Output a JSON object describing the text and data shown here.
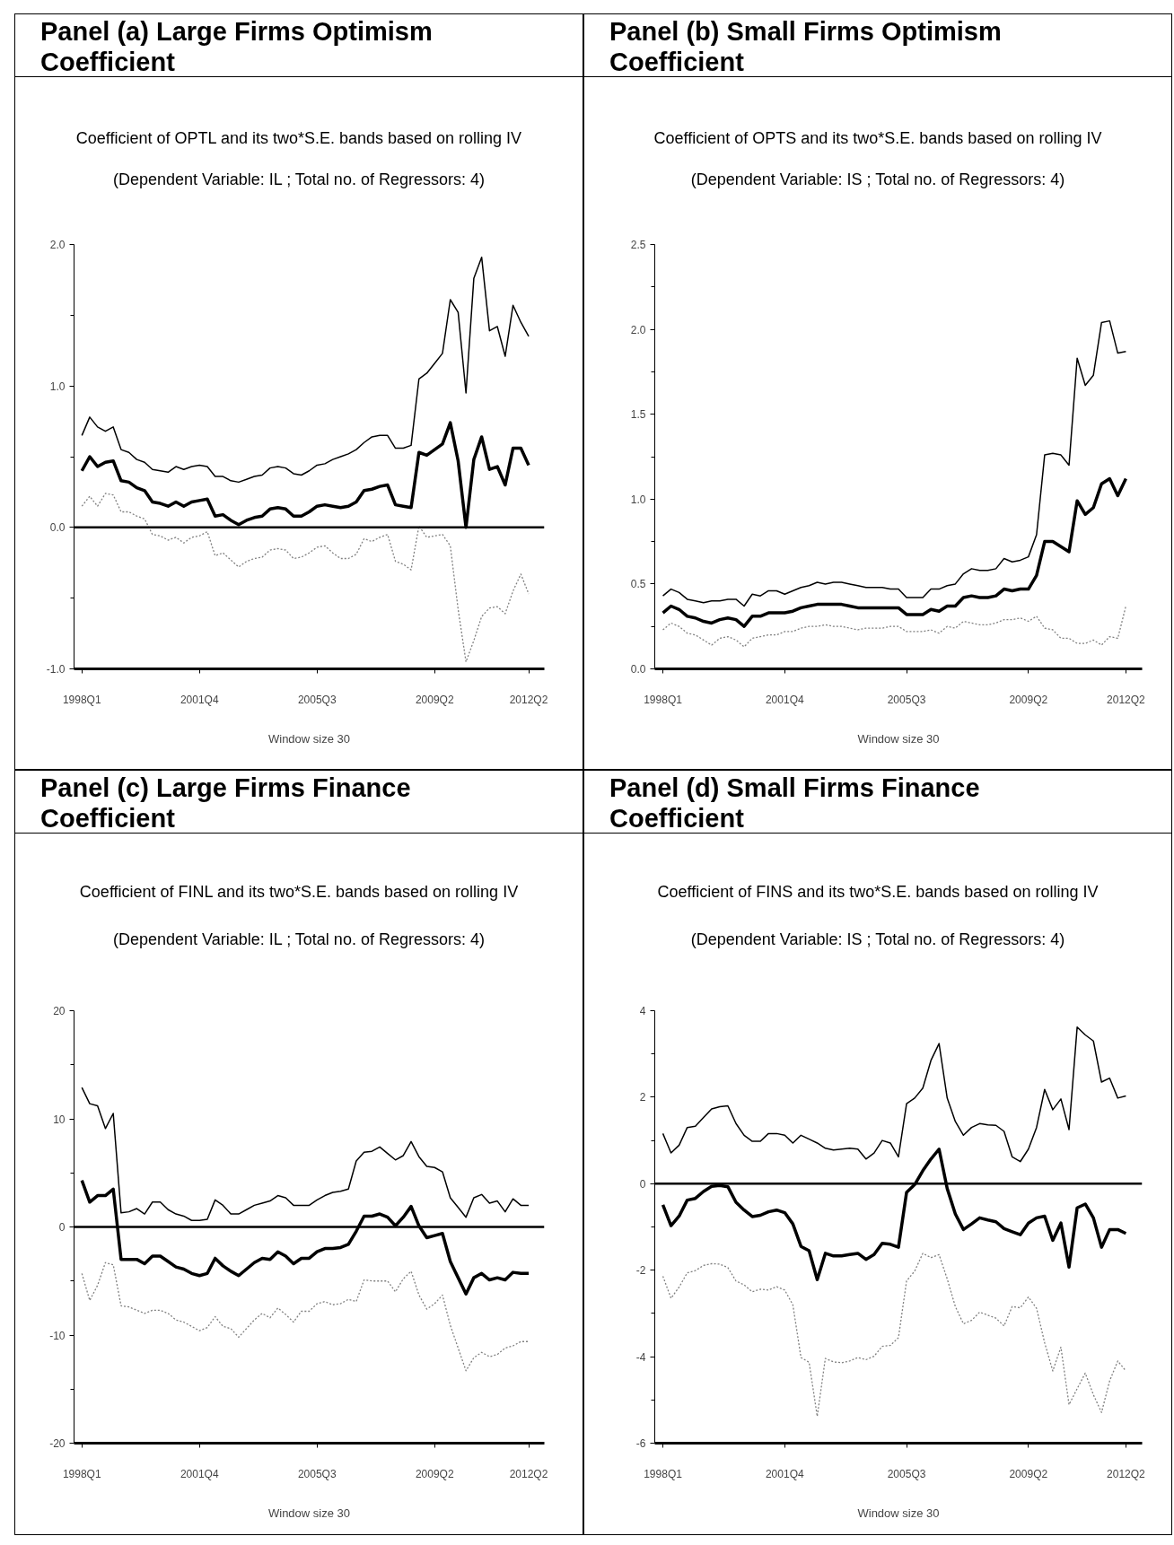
{
  "chart_data": [
    {
      "type": "line",
      "title": "Panel (a) Large Firms Optimism Coefficient",
      "subtitle": "Coefficient of OPTL and its two*S.E. bands based on rolling IV",
      "annotations": [
        "(Dependent Variable: IL ; Total no. of Regressors: 4)"
      ],
      "xlabel": "Window size 30",
      "categories": [
        "1998Q1",
        null,
        null,
        null,
        null,
        null,
        null,
        null,
        null,
        null,
        null,
        null,
        null,
        null,
        null,
        "2001Q4",
        null,
        null,
        null,
        null,
        null,
        null,
        null,
        null,
        null,
        null,
        null,
        null,
        null,
        null,
        "2005Q3",
        null,
        null,
        null,
        null,
        null,
        null,
        null,
        null,
        null,
        null,
        null,
        null,
        null,
        null,
        "2009Q2",
        null,
        null,
        null,
        null,
        null,
        null,
        null,
        null,
        null,
        null,
        null,
        "2012Q2"
      ],
      "ylim": [
        -1,
        2
      ],
      "yticks": [
        {
          "value": 2,
          "label": "2.0"
        },
        {
          "value": 1.5,
          "label": null
        },
        {
          "value": 1,
          "label": "1.0"
        },
        {
          "value": 0.5,
          "label": null
        },
        {
          "value": 0,
          "label": "0.0"
        },
        {
          "value": -0.5,
          "label": null
        },
        {
          "value": -1,
          "label": "-1.0"
        }
      ],
      "ref_lines": [
        {
          "axis": "y",
          "value": 0,
          "color": "#000000"
        }
      ],
      "line_style": "solid",
      "series": [
        {
          "color": "#000000",
          "values": [
            0.4,
            0.5,
            0.43,
            0.46,
            0.47,
            0.33,
            0.32,
            0.28,
            0.26,
            0.18,
            0.17,
            0.15,
            0.18,
            0.15,
            0.18,
            0.19,
            0.2,
            0.08,
            0.09,
            0.05,
            0.02,
            0.05,
            0.07,
            0.08,
            0.13,
            0.14,
            0.13,
            0.08,
            0.08,
            0.11,
            0.15,
            0.16,
            0.15,
            0.14,
            0.15,
            0.18,
            0.26,
            0.27,
            0.29,
            0.3,
            0.16,
            0.15,
            0.14,
            0.53,
            0.51,
            0.55,
            0.59,
            0.74,
            0.47,
            0.0,
            0.48,
            0.64,
            0.41,
            0.43,
            0.3,
            0.56,
            0.56,
            0.44
          ]
        },
        {
          "color": "#000000",
          "values": [
            0.65,
            0.78,
            0.71,
            0.68,
            0.71,
            0.55,
            0.53,
            0.48,
            0.46,
            0.41,
            0.4,
            0.39,
            0.43,
            0.41,
            0.43,
            0.44,
            0.43,
            0.36,
            0.36,
            0.33,
            0.32,
            0.34,
            0.36,
            0.37,
            0.42,
            0.43,
            0.42,
            0.38,
            0.37,
            0.4,
            0.44,
            0.45,
            0.48,
            0.5,
            0.52,
            0.55,
            0.6,
            0.64,
            0.65,
            0.65,
            0.56,
            0.56,
            0.58,
            1.05,
            1.09,
            1.16,
            1.23,
            1.61,
            1.52,
            0.95,
            1.76,
            1.91,
            1.39,
            1.42,
            1.21,
            1.57,
            1.45,
            1.35
          ]
        },
        {
          "color": "#808080",
          "line_style": "dotted",
          "values": [
            0.15,
            0.22,
            0.15,
            0.24,
            0.23,
            0.11,
            0.11,
            0.08,
            0.06,
            -0.05,
            -0.06,
            -0.09,
            -0.07,
            -0.11,
            -0.07,
            -0.06,
            -0.03,
            -0.2,
            -0.18,
            -0.23,
            -0.28,
            -0.24,
            -0.22,
            -0.21,
            -0.16,
            -0.15,
            -0.16,
            -0.22,
            -0.21,
            -0.18,
            -0.14,
            -0.13,
            -0.18,
            -0.22,
            -0.22,
            -0.19,
            -0.08,
            -0.1,
            -0.07,
            -0.05,
            -0.24,
            -0.26,
            -0.3,
            0.01,
            -0.07,
            -0.06,
            -0.05,
            -0.13,
            -0.58,
            -0.95,
            -0.8,
            -0.63,
            -0.57,
            -0.56,
            -0.61,
            -0.45,
            -0.33,
            -0.47
          ]
        }
      ]
    },
    {
      "type": "line",
      "title": "Panel (b) Small Firms Optimism Coefficient",
      "subtitle": "Coefficient of OPTS and its two*S.E. bands based on rolling IV",
      "annotations": [
        "(Dependent Variable: IS ; Total no. of Regressors: 4)"
      ],
      "xlabel": "Window size 30",
      "categories": [
        "1998Q1",
        null,
        null,
        null,
        null,
        null,
        null,
        null,
        null,
        null,
        null,
        null,
        null,
        null,
        null,
        "2001Q4",
        null,
        null,
        null,
        null,
        null,
        null,
        null,
        null,
        null,
        null,
        null,
        null,
        null,
        null,
        "2005Q3",
        null,
        null,
        null,
        null,
        null,
        null,
        null,
        null,
        null,
        null,
        null,
        null,
        null,
        null,
        "2009Q2",
        null,
        null,
        null,
        null,
        null,
        null,
        null,
        null,
        null,
        null,
        null,
        "2012Q2"
      ],
      "ylim": [
        0,
        2.5
      ],
      "yticks": [
        {
          "value": 2.5,
          "label": "2.5"
        },
        {
          "value": 2.25,
          "label": null
        },
        {
          "value": 2,
          "label": "2.0"
        },
        {
          "value": 1.75,
          "label": null
        },
        {
          "value": 1.5,
          "label": "1.5"
        },
        {
          "value": 1.25,
          "label": null
        },
        {
          "value": 1,
          "label": "1.0"
        },
        {
          "value": 0.75,
          "label": null
        },
        {
          "value": 0.5,
          "label": "0.5"
        },
        {
          "value": 0.25,
          "label": null
        },
        {
          "value": 0,
          "label": "0.0"
        }
      ],
      "line_style": "solid",
      "series": [
        {
          "color": "#000000",
          "values": [
            0.33,
            0.37,
            0.35,
            0.31,
            0.3,
            0.28,
            0.27,
            0.29,
            0.3,
            0.29,
            0.25,
            0.31,
            0.31,
            0.33,
            0.33,
            0.33,
            0.34,
            0.36,
            0.37,
            0.38,
            0.38,
            0.38,
            0.38,
            0.37,
            0.36,
            0.36,
            0.36,
            0.36,
            0.36,
            0.36,
            0.32,
            0.32,
            0.32,
            0.35,
            0.34,
            0.37,
            0.37,
            0.42,
            0.43,
            0.42,
            0.42,
            0.43,
            0.47,
            0.46,
            0.47,
            0.47,
            0.55,
            0.75,
            0.75,
            0.72,
            0.69,
            0.99,
            0.91,
            0.95,
            1.09,
            1.12,
            1.02,
            1.12
          ]
        },
        {
          "color": "#000000",
          "values": [
            0.43,
            0.47,
            0.45,
            0.41,
            0.4,
            0.39,
            0.4,
            0.4,
            0.41,
            0.41,
            0.37,
            0.44,
            0.43,
            0.46,
            0.46,
            0.44,
            0.46,
            0.48,
            0.49,
            0.51,
            0.5,
            0.51,
            0.51,
            0.5,
            0.49,
            0.48,
            0.48,
            0.48,
            0.47,
            0.47,
            0.42,
            0.42,
            0.42,
            0.47,
            0.47,
            0.49,
            0.5,
            0.56,
            0.59,
            0.58,
            0.58,
            0.59,
            0.65,
            0.63,
            0.64,
            0.66,
            0.79,
            1.26,
            1.27,
            1.26,
            1.2,
            1.83,
            1.67,
            1.73,
            2.04,
            2.05,
            1.86,
            1.87
          ]
        },
        {
          "color": "#808080",
          "line_style": "dotted",
          "values": [
            0.23,
            0.27,
            0.25,
            0.21,
            0.2,
            0.17,
            0.14,
            0.18,
            0.19,
            0.17,
            0.13,
            0.18,
            0.19,
            0.2,
            0.2,
            0.22,
            0.22,
            0.24,
            0.25,
            0.25,
            0.26,
            0.25,
            0.25,
            0.24,
            0.23,
            0.24,
            0.24,
            0.24,
            0.25,
            0.25,
            0.22,
            0.22,
            0.22,
            0.23,
            0.21,
            0.25,
            0.24,
            0.28,
            0.27,
            0.26,
            0.26,
            0.27,
            0.29,
            0.29,
            0.3,
            0.28,
            0.31,
            0.24,
            0.23,
            0.18,
            0.18,
            0.15,
            0.15,
            0.17,
            0.14,
            0.19,
            0.18,
            0.37
          ]
        }
      ]
    },
    {
      "type": "line",
      "title": "Panel (c) Large Firms Finance Coefficient",
      "subtitle": "Coefficient of FINL and its two*S.E. bands based on rolling IV",
      "annotations": [
        "(Dependent Variable: IL ; Total no. of Regressors: 4)"
      ],
      "xlabel": "Window size 30",
      "categories": [
        "1998Q1",
        null,
        null,
        null,
        null,
        null,
        null,
        null,
        null,
        null,
        null,
        null,
        null,
        null,
        null,
        "2001Q4",
        null,
        null,
        null,
        null,
        null,
        null,
        null,
        null,
        null,
        null,
        null,
        null,
        null,
        null,
        "2005Q3",
        null,
        null,
        null,
        null,
        null,
        null,
        null,
        null,
        null,
        null,
        null,
        null,
        null,
        null,
        "2009Q2",
        null,
        null,
        null,
        null,
        null,
        null,
        null,
        null,
        null,
        null,
        null,
        "2012Q2"
      ],
      "ylim": [
        -20,
        20
      ],
      "yticks": [
        20,
        {
          "value": 15,
          "label": null
        },
        10,
        {
          "value": 5,
          "label": null
        },
        0,
        {
          "value": -5,
          "label": null
        },
        -10,
        {
          "value": -15,
          "label": null
        },
        -20
      ],
      "ref_lines": [
        {
          "axis": "y",
          "value": 0,
          "color": "#000000"
        }
      ],
      "line_style": "solid",
      "series": [
        {
          "color": "#000000",
          "values": [
            4.3,
            2.3,
            2.9,
            2.9,
            3.5,
            -3.0,
            -3.0,
            -3.0,
            -3.4,
            -2.7,
            -2.7,
            -3.2,
            -3.7,
            -3.9,
            -4.3,
            -4.5,
            -4.3,
            -2.9,
            -3.6,
            -4.1,
            -4.5,
            -3.9,
            -3.3,
            -2.9,
            -3.0,
            -2.3,
            -2.7,
            -3.4,
            -2.9,
            -2.9,
            -2.3,
            -2.0,
            -2.0,
            -1.9,
            -1.6,
            -0.4,
            1.0,
            1.0,
            1.2,
            0.9,
            0.1,
            0.9,
            1.9,
            0.1,
            -1.0,
            -0.8,
            -0.6,
            -3.2,
            -4.7,
            -6.2,
            -4.7,
            -4.3,
            -4.9,
            -4.7,
            -4.9,
            -4.2,
            -4.3,
            -4.3
          ]
        },
        {
          "color": "#000000",
          "values": [
            12.9,
            11.4,
            11.2,
            9.1,
            10.5,
            1.3,
            1.4,
            1.7,
            1.2,
            2.3,
            2.3,
            1.6,
            1.2,
            1.0,
            0.6,
            0.6,
            0.7,
            2.5,
            2.0,
            1.2,
            1.2,
            1.6,
            2.0,
            2.2,
            2.4,
            2.9,
            2.7,
            2.0,
            2.0,
            2.0,
            2.5,
            2.9,
            3.2,
            3.3,
            3.5,
            6.1,
            6.9,
            7.0,
            7.4,
            6.8,
            6.2,
            6.6,
            7.9,
            6.5,
            5.6,
            5.5,
            5.1,
            2.7,
            1.8,
            0.9,
            2.7,
            3.0,
            2.2,
            2.4,
            1.4,
            2.6,
            2.0,
            2.0
          ]
        },
        {
          "color": "#808080",
          "line_style": "dotted",
          "values": [
            -4.3,
            -6.8,
            -5.4,
            -3.3,
            -3.5,
            -7.3,
            -7.4,
            -7.7,
            -8.0,
            -7.7,
            -7.7,
            -8.0,
            -8.6,
            -8.8,
            -9.2,
            -9.6,
            -9.3,
            -8.3,
            -9.2,
            -9.4,
            -10.2,
            -9.4,
            -8.6,
            -8.0,
            -8.4,
            -7.5,
            -8.1,
            -8.8,
            -7.8,
            -7.8,
            -7.1,
            -6.9,
            -7.2,
            -7.1,
            -6.7,
            -6.9,
            -4.9,
            -5.0,
            -5.0,
            -5.0,
            -6.0,
            -4.8,
            -4.1,
            -6.3,
            -7.6,
            -7.1,
            -6.3,
            -9.1,
            -11.2,
            -13.3,
            -12.1,
            -11.6,
            -12.0,
            -11.8,
            -11.2,
            -11.0,
            -10.6,
            -10.6
          ]
        }
      ]
    },
    {
      "type": "line",
      "title": "Panel (d) Small Firms Finance Coefficient",
      "subtitle": "Coefficient of FINS and its two*S.E. bands based on rolling IV",
      "annotations": [
        "(Dependent Variable: IS ; Total no. of Regressors: 4)"
      ],
      "xlabel": "Window size 30",
      "categories": [
        "1998Q1",
        null,
        null,
        null,
        null,
        null,
        null,
        null,
        null,
        null,
        null,
        null,
        null,
        null,
        null,
        "2001Q4",
        null,
        null,
        null,
        null,
        null,
        null,
        null,
        null,
        null,
        null,
        null,
        null,
        null,
        null,
        "2005Q3",
        null,
        null,
        null,
        null,
        null,
        null,
        null,
        null,
        null,
        null,
        null,
        null,
        null,
        null,
        "2009Q2",
        null,
        null,
        null,
        null,
        null,
        null,
        null,
        null,
        null,
        null,
        null,
        "2012Q2"
      ],
      "ylim": [
        -6,
        4
      ],
      "yticks": [
        4,
        {
          "value": 3,
          "label": null
        },
        2,
        {
          "value": 1,
          "label": null
        },
        0,
        {
          "value": -1,
          "label": null
        },
        -2,
        {
          "value": -3,
          "label": null
        },
        -4,
        {
          "value": -5,
          "label": null
        },
        -6
      ],
      "ref_lines": [
        {
          "axis": "y",
          "value": 0,
          "color": "#000000"
        }
      ],
      "line_style": "solid",
      "series": [
        {
          "color": "#000000",
          "values": [
            -0.49,
            -0.97,
            -0.75,
            -0.38,
            -0.34,
            -0.18,
            -0.06,
            -0.04,
            -0.07,
            -0.43,
            -0.61,
            -0.76,
            -0.73,
            -0.65,
            -0.61,
            -0.67,
            -0.93,
            -1.45,
            -1.55,
            -2.22,
            -1.61,
            -1.67,
            -1.67,
            -1.64,
            -1.61,
            -1.75,
            -1.64,
            -1.38,
            -1.4,
            -1.47,
            -0.2,
            -0.02,
            0.3,
            0.57,
            0.8,
            -0.11,
            -0.7,
            -1.06,
            -0.93,
            -0.79,
            -0.84,
            -0.88,
            -1.04,
            -1.11,
            -1.18,
            -0.91,
            -0.79,
            -0.75,
            -1.31,
            -0.91,
            -1.93,
            -0.56,
            -0.47,
            -0.79,
            -1.47,
            -1.06,
            -1.06,
            -1.15
          ]
        },
        {
          "color": "#000000",
          "values": [
            1.16,
            0.71,
            0.89,
            1.3,
            1.33,
            1.53,
            1.73,
            1.78,
            1.8,
            1.39,
            1.12,
            0.98,
            0.98,
            1.16,
            1.16,
            1.12,
            0.94,
            1.12,
            1.03,
            0.94,
            0.82,
            0.78,
            0.8,
            0.82,
            0.8,
            0.57,
            0.71,
            1.0,
            0.94,
            0.62,
            1.85,
            1.98,
            2.21,
            2.85,
            3.24,
            1.98,
            1.44,
            1.12,
            1.3,
            1.39,
            1.36,
            1.35,
            1.21,
            0.62,
            0.51,
            0.8,
            1.3,
            2.18,
            1.71,
            1.96,
            1.25,
            3.62,
            3.44,
            3.3,
            2.35,
            2.44,
            1.98,
            2.03
          ]
        },
        {
          "color": "#808080",
          "line_style": "dotted",
          "values": [
            -2.14,
            -2.65,
            -2.39,
            -2.06,
            -2.01,
            -1.89,
            -1.85,
            -1.86,
            -1.94,
            -2.25,
            -2.34,
            -2.5,
            -2.44,
            -2.46,
            -2.38,
            -2.46,
            -2.8,
            -4.02,
            -4.13,
            -5.38,
            -4.04,
            -4.12,
            -4.14,
            -4.1,
            -4.02,
            -4.07,
            -3.99,
            -3.76,
            -3.74,
            -3.56,
            -2.25,
            -2.02,
            -1.61,
            -1.71,
            -1.64,
            -2.2,
            -2.84,
            -3.24,
            -3.16,
            -2.97,
            -3.04,
            -3.11,
            -3.29,
            -2.84,
            -2.87,
            -2.62,
            -2.88,
            -3.68,
            -4.33,
            -3.78,
            -5.11,
            -4.74,
            -4.38,
            -4.88,
            -5.29,
            -4.56,
            -4.1,
            -4.33
          ]
        }
      ]
    }
  ]
}
